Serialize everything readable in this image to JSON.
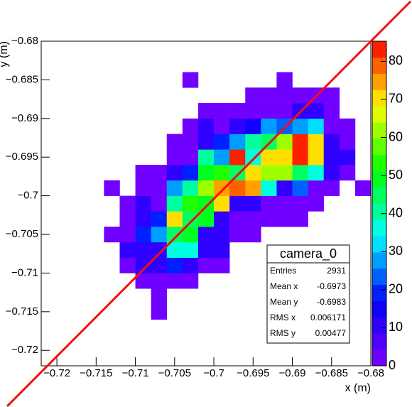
{
  "chart_data": {
    "type": "heatmap",
    "xlabel": "x (m)",
    "ylabel": "y (m)",
    "xlim": [
      -0.722,
      -0.68
    ],
    "ylim": [
      -0.722,
      -0.68
    ],
    "zlim": [
      0,
      85.3
    ],
    "xticks": [
      {
        "value": -0.72,
        "label": "−0.72"
      },
      {
        "value": -0.715,
        "label": "−0.715"
      },
      {
        "value": -0.71,
        "label": "−0.71"
      },
      {
        "value": -0.705,
        "label": "−0.705"
      },
      {
        "value": -0.7,
        "label": "−0.7"
      },
      {
        "value": -0.695,
        "label": "−0.695"
      },
      {
        "value": -0.69,
        "label": "−0.69"
      },
      {
        "value": -0.685,
        "label": "−0.685"
      },
      {
        "value": -0.68,
        "label": "−0.68"
      }
    ],
    "yticks": [
      {
        "value": -0.72,
        "label": "−0.72"
      },
      {
        "value": -0.715,
        "label": "−0.715"
      },
      {
        "value": -0.71,
        "label": "−0.71"
      },
      {
        "value": -0.705,
        "label": "−0.705"
      },
      {
        "value": -0.7,
        "label": "−0.7"
      },
      {
        "value": -0.695,
        "label": "−0.695"
      },
      {
        "value": -0.69,
        "label": "−0.69"
      },
      {
        "value": -0.685,
        "label": "−0.685"
      },
      {
        "value": -0.68,
        "label": "−0.68"
      }
    ],
    "zticks": [
      0,
      10,
      20,
      30,
      40,
      50,
      60,
      70,
      80
    ],
    "palette": [
      "#8000ff",
      "#0000ff",
      "#00ffff",
      "#00ff00",
      "#ffff00",
      "#ff0000"
    ],
    "levels": 20,
    "xbins": [
      -0.722,
      -0.72,
      -0.718,
      -0.716,
      -0.714,
      -0.712,
      -0.71,
      -0.708,
      -0.706,
      -0.704,
      -0.702,
      -0.7,
      -0.698,
      -0.696,
      -0.694,
      -0.692,
      -0.69,
      -0.688,
      -0.686,
      -0.684,
      -0.682,
      -0.68
    ],
    "ybins": [
      -0.722,
      -0.72,
      -0.718,
      -0.716,
      -0.714,
      -0.712,
      -0.71,
      -0.708,
      -0.706,
      -0.704,
      -0.702,
      -0.7,
      -0.698,
      -0.696,
      -0.694,
      -0.692,
      -0.69,
      -0.688,
      -0.686,
      -0.684,
      -0.682,
      -0.68
    ],
    "z": [
      [
        null,
        null,
        null,
        null,
        null,
        null,
        null,
        null,
        null,
        null,
        null,
        null,
        null,
        null,
        null,
        null,
        null,
        null,
        null,
        null,
        null
      ],
      [
        null,
        null,
        null,
        null,
        null,
        null,
        null,
        null,
        null,
        null,
        null,
        null,
        null,
        null,
        null,
        null,
        null,
        null,
        null,
        null,
        null
      ],
      [
        null,
        null,
        null,
        null,
        null,
        null,
        null,
        null,
        null,
        null,
        null,
        null,
        null,
        null,
        null,
        null,
        null,
        null,
        null,
        null,
        null
      ],
      [
        null,
        null,
        null,
        null,
        null,
        null,
        null,
        3,
        null,
        null,
        null,
        null,
        null,
        null,
        null,
        null,
        null,
        null,
        null,
        null,
        null
      ],
      [
        null,
        null,
        null,
        null,
        null,
        null,
        null,
        3,
        null,
        null,
        null,
        null,
        null,
        null,
        null,
        null,
        null,
        null,
        null,
        null,
        null
      ],
      [
        null,
        null,
        null,
        null,
        null,
        null,
        3,
        3,
        3,
        3,
        null,
        null,
        null,
        null,
        null,
        null,
        null,
        null,
        null,
        null,
        null
      ],
      [
        null,
        null,
        null,
        null,
        null,
        3,
        10,
        11,
        19,
        10,
        4,
        3,
        null,
        null,
        null,
        null,
        null,
        null,
        null,
        null,
        null
      ],
      [
        null,
        null,
        null,
        null,
        null,
        9,
        10,
        11,
        35,
        36,
        12,
        10,
        null,
        null,
        null,
        null,
        null,
        null,
        null,
        null,
        null
      ],
      [
        null,
        null,
        null,
        null,
        3,
        3,
        19,
        27,
        44,
        50,
        12,
        11,
        3,
        3,
        null,
        null,
        null,
        null,
        null,
        null,
        null
      ],
      [
        null,
        null,
        null,
        null,
        null,
        3,
        11,
        18,
        70,
        44,
        50,
        12,
        4,
        4,
        4,
        3,
        3,
        null,
        null,
        null,
        null
      ],
      [
        null,
        null,
        null,
        null,
        null,
        3,
        11,
        4,
        42,
        52,
        50,
        71,
        11,
        11,
        4,
        4,
        4,
        3,
        null,
        null,
        null
      ],
      [
        null,
        null,
        null,
        null,
        3,
        null,
        3,
        3,
        27,
        42,
        60,
        76,
        81,
        73,
        36,
        10,
        25,
        4,
        4,
        null,
        3
      ],
      [
        null,
        null,
        null,
        null,
        null,
        null,
        3,
        3,
        10,
        19,
        50,
        52,
        43,
        70,
        60,
        60,
        43,
        35,
        12,
        4,
        null
      ],
      [
        null,
        null,
        null,
        null,
        null,
        null,
        null,
        null,
        3,
        4,
        42,
        27,
        82,
        36,
        72,
        70,
        83,
        70,
        12,
        10,
        null
      ],
      [
        null,
        null,
        null,
        null,
        null,
        null,
        null,
        null,
        3,
        4,
        11,
        18,
        27,
        40,
        43,
        60,
        82,
        70,
        11,
        4,
        null
      ],
      [
        null,
        null,
        null,
        null,
        null,
        null,
        null,
        null,
        null,
        3,
        10,
        4,
        11,
        17,
        27,
        25,
        29,
        32,
        4,
        3,
        null
      ],
      [
        null,
        null,
        null,
        null,
        null,
        null,
        null,
        null,
        null,
        null,
        3,
        3,
        4,
        4,
        4,
        4,
        9,
        11,
        3,
        null,
        null
      ],
      [
        null,
        null,
        null,
        null,
        null,
        null,
        null,
        null,
        null,
        null,
        null,
        null,
        null,
        3,
        3,
        3,
        4,
        3,
        3,
        null,
        null
      ],
      [
        null,
        null,
        null,
        null,
        null,
        null,
        null,
        null,
        null,
        2,
        null,
        null,
        null,
        null,
        null,
        2,
        null,
        null,
        null,
        null,
        null
      ],
      [
        null,
        null,
        null,
        null,
        null,
        null,
        null,
        null,
        null,
        null,
        null,
        null,
        null,
        null,
        null,
        null,
        null,
        null,
        null,
        null,
        null
      ],
      [
        null,
        null,
        null,
        null,
        null,
        null,
        null,
        null,
        null,
        null,
        null,
        null,
        null,
        null,
        null,
        null,
        null,
        null,
        null,
        null,
        null
      ]
    ],
    "stats": {
      "title": "camera_0",
      "rows": [
        {
          "label": "Entries",
          "value": 2931
        },
        {
          "label": "Mean x",
          "value": -0.6973
        },
        {
          "label": "Mean y",
          "value": -0.6983
        },
        {
          "label": "RMS x",
          "value": 0.006171
        },
        {
          "label": "RMS y",
          "value": 0.00477
        }
      ]
    }
  }
}
